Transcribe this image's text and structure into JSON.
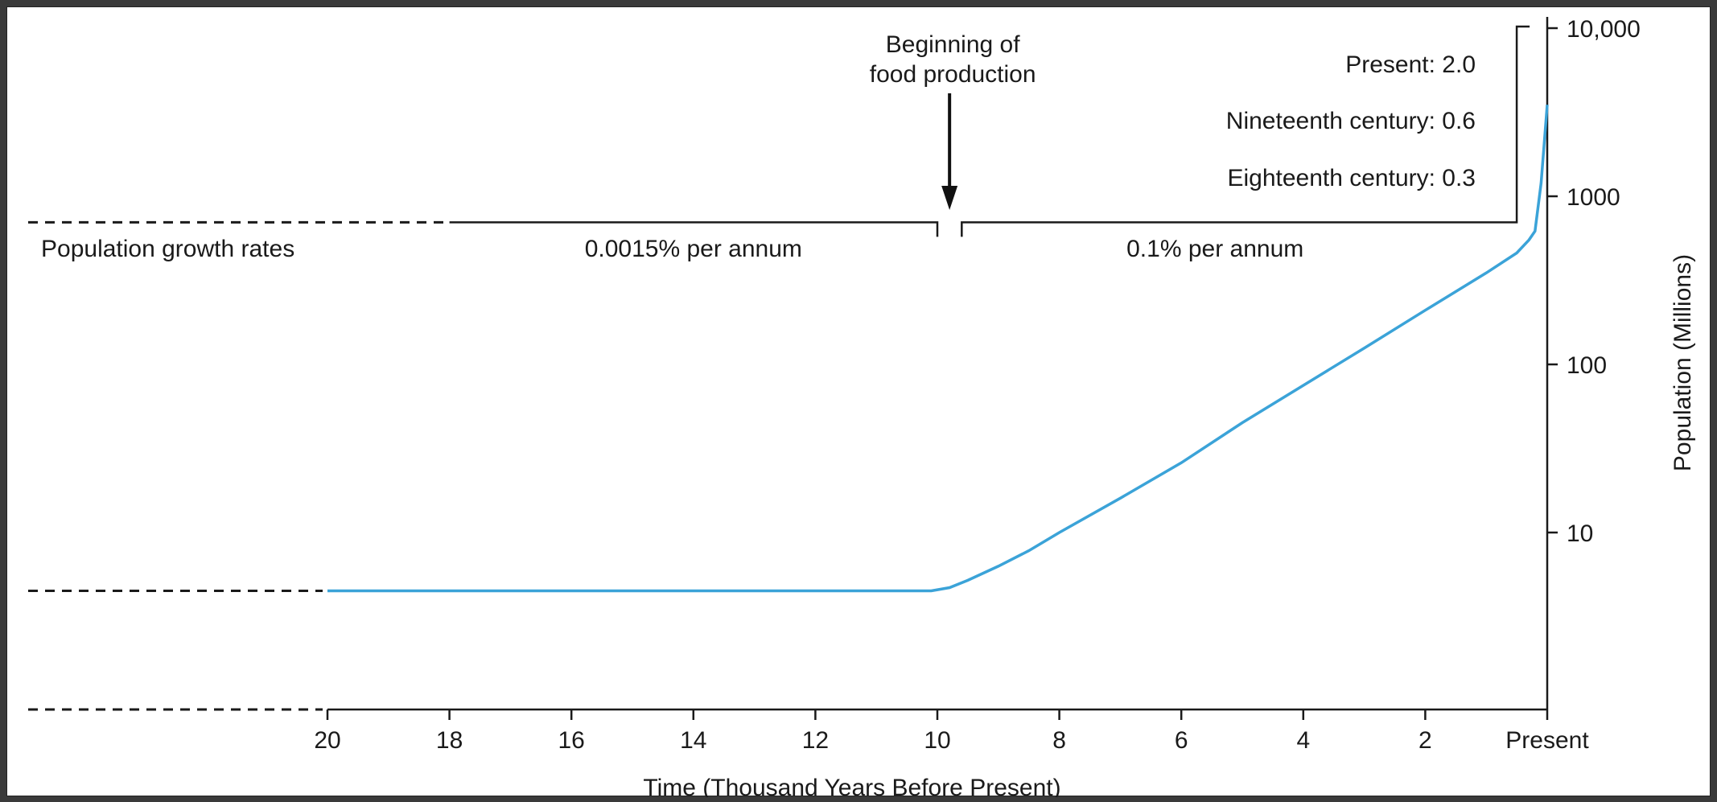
{
  "chart_data": {
    "type": "line",
    "title": "",
    "xlabel": "Time (Thousand Years Before Present)",
    "ylabel": "Population (Millions)",
    "yscale": "log",
    "xlim": [
      20,
      0
    ],
    "ylim": [
      0.3,
      10000
    ],
    "x_ticks": [
      {
        "value": 20,
        "label": "20"
      },
      {
        "value": 18,
        "label": "18"
      },
      {
        "value": 16,
        "label": "16"
      },
      {
        "value": 14,
        "label": "14"
      },
      {
        "value": 12,
        "label": "12"
      },
      {
        "value": 10,
        "label": "10"
      },
      {
        "value": 8,
        "label": "8"
      },
      {
        "value": 6,
        "label": "6"
      },
      {
        "value": 4,
        "label": "4"
      },
      {
        "value": 2,
        "label": "2"
      },
      {
        "value": 0,
        "label": "Present"
      }
    ],
    "y_ticks": [
      {
        "value": 10,
        "label": "10"
      },
      {
        "value": 100,
        "label": "100"
      },
      {
        "value": 1000,
        "label": "1000"
      },
      {
        "value": 10000,
        "label": "10,000"
      }
    ],
    "series": [
      {
        "color": "#3ba3d8",
        "x": [
          20,
          18,
          16,
          14,
          12,
          10.1,
          9.8,
          9.5,
          9,
          8.5,
          8,
          7,
          6,
          5,
          4,
          3,
          2,
          1,
          0.5,
          0.3,
          0.2,
          0.1,
          0
        ],
        "y": [
          4.5,
          4.5,
          4.5,
          4.5,
          4.5,
          4.5,
          4.7,
          5.2,
          6.3,
          7.8,
          10,
          16,
          26,
          45,
          75,
          125,
          210,
          350,
          460,
          550,
          620,
          1200,
          3500
        ]
      }
    ],
    "growth_rates_label": "Population growth rates",
    "growth_periods": [
      {
        "label": "0.0015% per annum",
        "from": 18,
        "to": 10
      },
      {
        "label": "0.1% per annum",
        "from": 9.6,
        "to": 0.5
      }
    ],
    "recent_growth_rates": [
      {
        "label": "Present: 2.0"
      },
      {
        "label": "Nineteenth century: 0.6"
      },
      {
        "label": "Eighteenth century: 0.3"
      }
    ],
    "annotation": {
      "label_line1": "Beginning of",
      "label_line2": "food production",
      "x": 9.8
    }
  }
}
